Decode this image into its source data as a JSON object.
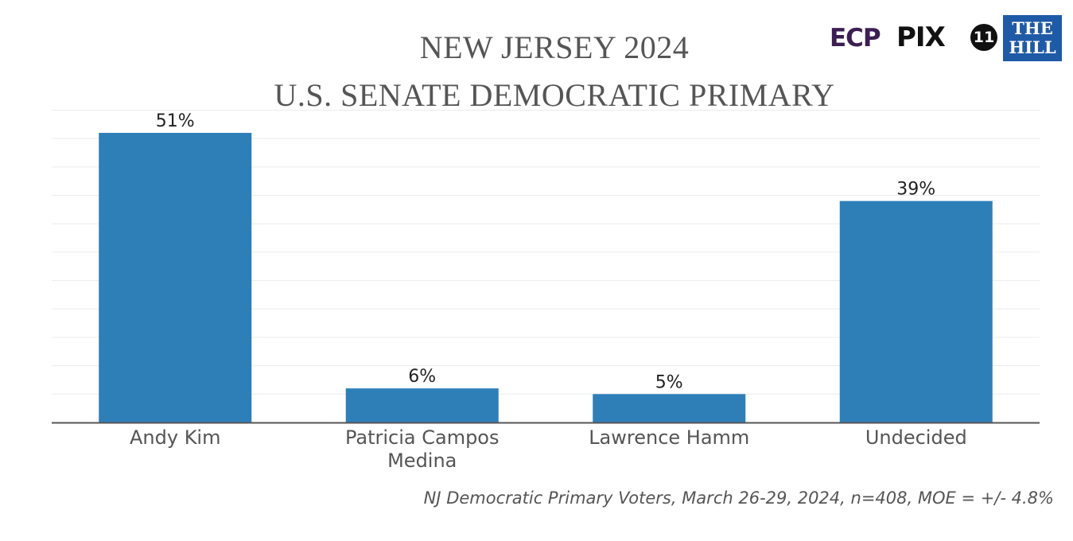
{
  "chart_data": {
    "type": "bar",
    "title": "NEW JERSEY 2024",
    "subtitle": "U.S. SENATE DEMOCRATIC PRIMARY",
    "categories": [
      [
        "Andy Kim"
      ],
      [
        "Patricia Campos",
        "Medina"
      ],
      [
        "Lawrence Hamm"
      ],
      [
        "Undecided"
      ]
    ],
    "values": [
      51,
      6,
      5,
      39
    ],
    "data_labels": [
      "51%",
      "6%",
      "5%",
      "39%"
    ],
    "ylim": [
      0,
      55
    ],
    "grid": true,
    "bar_color": "#2e7fb8",
    "source": "NJ Democratic Primary Voters, March 26-29, 2024, n=408, MOE = +/- 4.8%"
  },
  "logos": {
    "ecp": "ECP",
    "pix": "PIX",
    "pix_number": "11",
    "the_hill": "THE HILL"
  }
}
